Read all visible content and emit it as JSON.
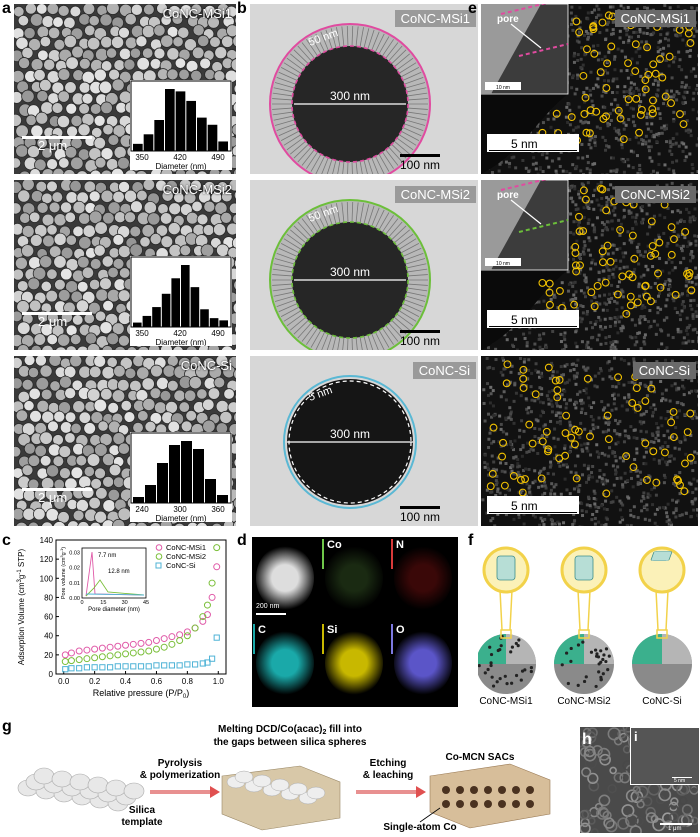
{
  "panels": {
    "a": "a",
    "b": "b",
    "c": "c",
    "d": "d",
    "e": "e",
    "f": "f",
    "g": "g",
    "h": "h",
    "i": "i"
  },
  "sem": [
    {
      "name": "CoNC-MSi1",
      "scale": "2 μm",
      "ticks": [
        "350",
        "420",
        "490"
      ],
      "xlabel": "Diameter (nm)",
      "hist": [
        6,
        14,
        26,
        52,
        50,
        42,
        28,
        22,
        8
      ]
    },
    {
      "name": "CoNC-MSi2",
      "scale": "2 μm",
      "ticks": [
        "350",
        "420",
        "490"
      ],
      "xlabel": "Diameter (nm)",
      "hist": [
        4,
        10,
        18,
        30,
        44,
        56,
        36,
        16,
        8,
        6
      ]
    },
    {
      "name": "CoNC-Si",
      "scale": "2 μm",
      "ticks": [
        "240",
        "300",
        "360"
      ],
      "xlabel": "Diameter (nm)",
      "hist": [
        6,
        18,
        40,
        58,
        62,
        54,
        24,
        8
      ]
    }
  ],
  "tem": [
    {
      "name": "CoNC-MSi1",
      "shell": "50 nm",
      "dia": "300 nm",
      "scale": "100 nm",
      "color": "#e04ba0"
    },
    {
      "name": "CoNC-MSi2",
      "shell": "50 nm",
      "dia": "300 nm",
      "scale": "100 nm",
      "color": "#6cbf3a"
    },
    {
      "name": "CoNC-Si",
      "shell": "5 nm",
      "dia": "300 nm",
      "scale": "100 nm",
      "color": "#5ab8d4"
    }
  ],
  "haadf": [
    {
      "name": "CoNC-MSi1",
      "scale": "5 nm",
      "inset_label": "pore",
      "inset_scale": "10 nm"
    },
    {
      "name": "CoNC-MSi2",
      "scale": "5 nm",
      "inset_label": "pore",
      "inset_scale": "10 nm"
    },
    {
      "name": "CoNC-Si",
      "scale": "5 nm"
    }
  ],
  "chart_data": {
    "type": "scatter",
    "xlabel": "Relative pressure (P/P",
    "xlabel_sub": "0",
    "ylabel": "Adsorption Volume (cm",
    "xticks": [
      "0.0",
      "0.2",
      "0.4",
      "0.6",
      "0.8",
      "1.0"
    ],
    "yticks": [
      "0",
      "20",
      "40",
      "60",
      "80",
      "100",
      "120",
      "140"
    ],
    "xlim": [
      -0.05,
      1.05
    ],
    "ylim": [
      0,
      140
    ],
    "legend": [
      "CoNC-MSi1",
      "CoNC-MSi2",
      "CoNC-Si"
    ],
    "colors": [
      "#e05aa8",
      "#7bbf3a",
      "#4fb3d6"
    ],
    "series": [
      {
        "name": "CoNC-MSi1",
        "x": [
          0.01,
          0.05,
          0.1,
          0.15,
          0.2,
          0.25,
          0.3,
          0.35,
          0.4,
          0.45,
          0.5,
          0.55,
          0.6,
          0.65,
          0.7,
          0.75,
          0.8,
          0.85,
          0.9,
          0.93,
          0.96,
          0.99
        ],
        "y": [
          20,
          22,
          24,
          25,
          26,
          27,
          28,
          29,
          30,
          31,
          32,
          33,
          35,
          37,
          39,
          41,
          44,
          48,
          55,
          62,
          80,
          112
        ]
      },
      {
        "name": "CoNC-MSi2",
        "x": [
          0.01,
          0.05,
          0.1,
          0.15,
          0.2,
          0.25,
          0.3,
          0.35,
          0.4,
          0.45,
          0.5,
          0.55,
          0.6,
          0.65,
          0.7,
          0.75,
          0.8,
          0.85,
          0.9,
          0.93,
          0.96,
          0.99
        ],
        "y": [
          13,
          14,
          15,
          16,
          17,
          18,
          19,
          20,
          21,
          22,
          23,
          24,
          26,
          28,
          31,
          35,
          40,
          48,
          60,
          72,
          95,
          132
        ]
      },
      {
        "name": "CoNC-Si",
        "x": [
          0.01,
          0.05,
          0.1,
          0.15,
          0.2,
          0.25,
          0.3,
          0.35,
          0.4,
          0.45,
          0.5,
          0.55,
          0.6,
          0.65,
          0.7,
          0.75,
          0.8,
          0.85,
          0.9,
          0.93,
          0.96,
          0.99
        ],
        "y": [
          5,
          6,
          6,
          7,
          7,
          7,
          7,
          8,
          8,
          8,
          8,
          8,
          9,
          9,
          9,
          9,
          10,
          10,
          11,
          12,
          16,
          38
        ]
      }
    ],
    "inset": {
      "xlabel": "Pore diameter (nm)",
      "ylabel": "Pore volume (cm",
      "xticks": [
        "0",
        "15",
        "30",
        "45"
      ],
      "yticks": [
        "0.00",
        "0.01",
        "0.02",
        "0.03"
      ],
      "annotations": [
        "7.7 nm",
        "12.8 nm"
      ]
    }
  },
  "eds": [
    "Co",
    "N",
    "C",
    "Si",
    "O"
  ],
  "eds_scale": "200 nm",
  "models": [
    "CoNC-MSi1",
    "CoNC-MSi2",
    "CoNC-Si"
  ],
  "scheme": {
    "top_label": "Melting DCD/Co(acac)",
    "top_label_sub": "2",
    "top_label_rest": " fill into",
    "top_label2": "the gaps between silica spheres",
    "step1": "Pyrolysis",
    "step1b": "& polymerization",
    "step2": "Etching",
    "step2b": "& leaching",
    "silica": "Silica",
    "template": "template",
    "product": "Co-MCN SACs",
    "single": "Single-atom Co"
  },
  "h_scale": "1 μm",
  "i_scale": "5 nm"
}
